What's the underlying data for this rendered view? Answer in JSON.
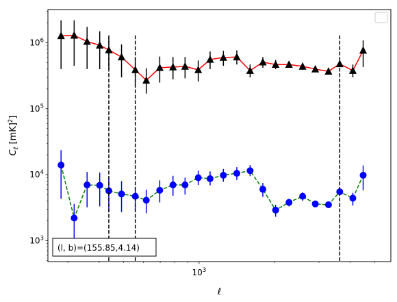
{
  "chart_data": {
    "type": "scatter",
    "title": "",
    "xlabel": "ℓ",
    "ylabel": "C_ℓ  [mK²]",
    "xscale": "log",
    "yscale": "log",
    "xlim": [
      250,
      5800
    ],
    "ylim": [
      480,
      3200000
    ],
    "x_ticks": [
      {
        "value": 1000,
        "base": "10",
        "exp": "3"
      }
    ],
    "y_ticks": [
      {
        "value": 1000,
        "base": "10",
        "exp": "3"
      },
      {
        "value": 10000,
        "base": "10",
        "exp": "4"
      },
      {
        "value": 100000,
        "base": "10",
        "exp": "5"
      },
      {
        "value": 1000000,
        "base": "10",
        "exp": "6"
      }
    ],
    "vlines": [
      437,
      557,
      3630
    ],
    "annotation": "(l, b)=(155.85,4.14)",
    "legend": "top-right (empty)",
    "series": [
      {
        "marker": "triangle",
        "marker_color": "#000000",
        "line_color": "#ff0000",
        "line_style": "solid",
        "errorbar_color": "#000000",
        "x": [
          282,
          318,
          358,
          402,
          437,
          491,
          557,
          616,
          697,
          787,
          879,
          992,
          1106,
          1249,
          1413,
          1596,
          1794,
          2017,
          2280,
          2583,
          2901,
          3275,
          3630,
          4094,
          4500
        ],
        "y": [
          1280000,
          1300000,
          1050000,
          920000,
          780000,
          610000,
          390000,
          270000,
          420000,
          430000,
          440000,
          390000,
          560000,
          600000,
          610000,
          380000,
          510000,
          470000,
          470000,
          440000,
          400000,
          370000,
          480000,
          380000,
          770000
        ],
        "err_low": [
          880000,
          850000,
          650000,
          520000,
          380000,
          310000,
          170000,
          100000,
          170000,
          150000,
          150000,
          130000,
          160000,
          150000,
          140000,
          80000,
          90000,
          70000,
          50000,
          50000,
          40000,
          30000,
          30000,
          80000,
          340000
        ],
        "err_high": [
          920000,
          900000,
          700000,
          580000,
          420000,
          340000,
          210000,
          140000,
          200000,
          180000,
          170000,
          150000,
          180000,
          160000,
          160000,
          90000,
          100000,
          80000,
          60000,
          60000,
          40000,
          30000,
          30000,
          90000,
          320000
        ]
      },
      {
        "marker": "circle",
        "marker_color": "#0000ff",
        "line_color": "#008000",
        "line_style": "dashed",
        "errorbar_color": "#0000ff",
        "x": [
          282,
          318,
          358,
          402,
          437,
          491,
          557,
          616,
          697,
          787,
          879,
          992,
          1106,
          1249,
          1413,
          1596,
          1794,
          2017,
          2280,
          2583,
          2901,
          3275,
          3630,
          4094,
          4500
        ],
        "y": [
          14000,
          2200,
          7000,
          6900,
          5700,
          5100,
          4700,
          4100,
          5800,
          7000,
          7000,
          9000,
          8700,
          9800,
          10500,
          11500,
          6000,
          2900,
          3800,
          4700,
          3600,
          3500,
          5500,
          4400,
          9800
        ],
        "err_low": [
          9700,
          1200,
          3800,
          3600,
          3000,
          2400,
          2000,
          1500,
          2000,
          2200,
          2000,
          2000,
          1800,
          2000,
          2200,
          2000,
          1400,
          600,
          500,
          700,
          300,
          300,
          500,
          1000,
          4000
        ],
        "err_high": [
          9600,
          1400,
          4000,
          3900,
          3300,
          2900,
          1800,
          1800,
          2400,
          2600,
          2000,
          2500,
          2500,
          2400,
          2500,
          2500,
          1500,
          600,
          500,
          700,
          400,
          300,
          500,
          900,
          4000
        ]
      }
    ]
  }
}
